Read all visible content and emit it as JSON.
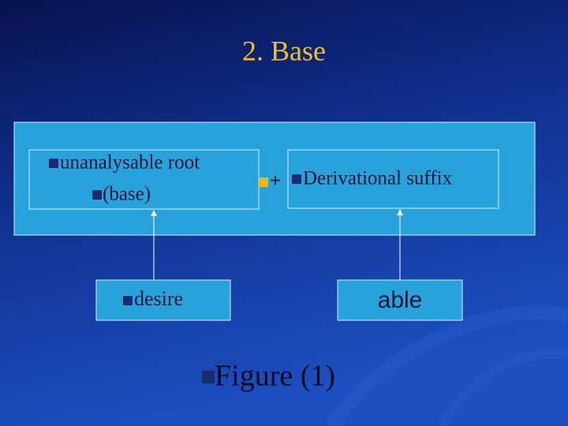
{
  "title": "2. Base",
  "diagram": {
    "root_box": {
      "lines": [
        "unanalysable root",
        "(base)"
      ]
    },
    "operator": "+",
    "suffix_box": {
      "label": "Derivational suffix"
    },
    "root_example": "desire",
    "suffix_example": "able",
    "caption": "Figure (1)"
  }
}
